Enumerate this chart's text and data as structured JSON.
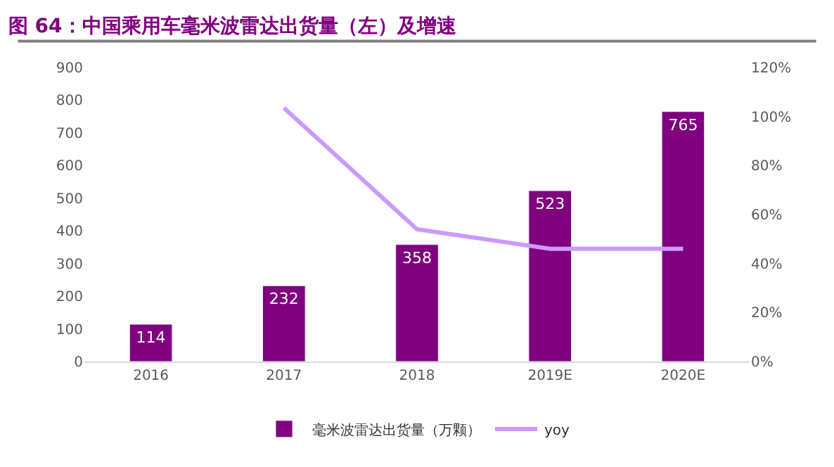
{
  "chart_data": {
    "type": "bar",
    "title": "图 64：中国乘用车毫米波雷达出货量（左）及增速",
    "categories": [
      "2016",
      "2017",
      "2018",
      "2019E",
      "2020E"
    ],
    "series": [
      {
        "name": "毫米波雷达出货量（万颗）",
        "color": "#800080",
        "values": [
          114,
          232,
          358,
          523,
          765
        ],
        "value_labels": [
          "114",
          "232",
          "358",
          "523",
          "765"
        ]
      },
      {
        "name": "yoy",
        "type": "line",
        "axis": "y2",
        "color": "#cc99ff",
        "values": [
          null,
          103.5,
          54,
          46,
          46
        ]
      }
    ],
    "ylim": [
      0,
      900
    ],
    "yticks": [
      0,
      100,
      200,
      300,
      400,
      500,
      600,
      700,
      800,
      900
    ],
    "y2lim": [
      0,
      120
    ],
    "y2ticks": [
      {
        "value": 0,
        "label": "0%"
      },
      {
        "value": 20,
        "label": "20%"
      },
      {
        "value": 40,
        "label": "40%"
      },
      {
        "value": 60,
        "label": "60%"
      },
      {
        "value": 80,
        "label": "80%"
      },
      {
        "value": 100,
        "label": "100%"
      },
      {
        "value": 120,
        "label": "120%"
      }
    ],
    "legend": "bottom",
    "marker": "none"
  }
}
